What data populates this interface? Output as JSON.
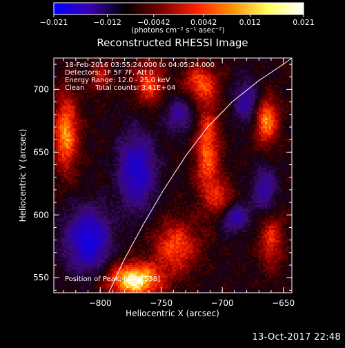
{
  "chart_data": {
    "type": "heatmap",
    "title": "Reconstructed RHESSI Image",
    "xlabel": "Heliocentric X (arcsec)",
    "ylabel": "Heliocentric Y (arcsec)",
    "xlim": [
      -838,
      -643
    ],
    "ylim": [
      538,
      725
    ],
    "xticks": [
      -800,
      -750,
      -700,
      -650
    ],
    "yticks": [
      550,
      600,
      650,
      700
    ],
    "xtick_labels": [
      "−800",
      "−750",
      "−700",
      "−650"
    ],
    "ytick_labels": [
      "550",
      "600",
      "650",
      "700"
    ],
    "colorbar": {
      "range": [
        -0.021,
        0.021
      ],
      "ticks": [
        -0.021,
        -0.012,
        -0.0042,
        0.0042,
        0.012,
        0.021
      ],
      "tick_labels": [
        "−0.021",
        "−0.012",
        "−0.0042",
        "0.0042",
        "0.012",
        "0.021"
      ],
      "units_label": "(photons cm⁻² s⁻¹ asec⁻²)",
      "colors": [
        "#0000ff",
        "#3a00b0",
        "#000000",
        "#7a0000",
        "#ff2000",
        "#ff9000",
        "#ffff60",
        "#ffffff"
      ]
    },
    "annotations": [
      "18-Feb-2016 03:55:24.000 to 04:05:24.000",
      "Detectors: 1F 5F 7F, Att 0",
      "Energy Range: 12.0 - 25.0 keV",
      "Clean     Total counts: 3.41E+04"
    ],
    "peak_label": "Position of Peak: [-779,538]",
    "peak": {
      "x": -779,
      "y": 538
    },
    "limb_curve": [
      [
        -793,
        538
      ],
      [
        -780,
        565
      ],
      [
        -765,
        592
      ],
      [
        -748,
        620
      ],
      [
        -730,
        647
      ],
      [
        -712,
        670
      ],
      [
        -692,
        690
      ],
      [
        -670,
        707
      ],
      [
        -650,
        720
      ],
      [
        -643,
        725
      ]
    ],
    "hotspots": [
      {
        "x": -772,
        "y": 548,
        "intensity": 1.0,
        "sx": 22,
        "sy": 14
      },
      {
        "x": -738,
        "y": 575,
        "intensity": 0.6,
        "sx": 18,
        "sy": 20
      },
      {
        "x": -828,
        "y": 665,
        "intensity": 0.75,
        "sx": 10,
        "sy": 30
      },
      {
        "x": -760,
        "y": 705,
        "intensity": 0.55,
        "sx": 12,
        "sy": 18
      },
      {
        "x": -712,
        "y": 650,
        "intensity": 0.65,
        "sx": 10,
        "sy": 40
      },
      {
        "x": -718,
        "y": 705,
        "intensity": 0.55,
        "sx": 14,
        "sy": 14
      },
      {
        "x": -664,
        "y": 675,
        "intensity": 0.75,
        "sx": 10,
        "sy": 18
      },
      {
        "x": -700,
        "y": 612,
        "intensity": 0.45,
        "sx": 10,
        "sy": 14
      },
      {
        "x": -660,
        "y": 580,
        "intensity": 0.5,
        "sx": 10,
        "sy": 22
      },
      {
        "x": -800,
        "y": 710,
        "intensity": 0.35,
        "sx": 10,
        "sy": 12
      }
    ],
    "coldspots": [
      {
        "x": -810,
        "y": 580,
        "intensity": 0.8,
        "sx": 18,
        "sy": 25
      },
      {
        "x": -770,
        "y": 635,
        "intensity": 0.7,
        "sx": 15,
        "sy": 30
      },
      {
        "x": -690,
        "y": 598,
        "intensity": 0.55,
        "sx": 12,
        "sy": 12
      },
      {
        "x": -735,
        "y": 680,
        "intensity": 0.45,
        "sx": 12,
        "sy": 14
      },
      {
        "x": -680,
        "y": 690,
        "intensity": 0.5,
        "sx": 10,
        "sy": 18
      },
      {
        "x": -665,
        "y": 620,
        "intensity": 0.5,
        "sx": 10,
        "sy": 18
      }
    ]
  },
  "footer": {
    "timestamp": "13-Oct-2017 22:48"
  }
}
